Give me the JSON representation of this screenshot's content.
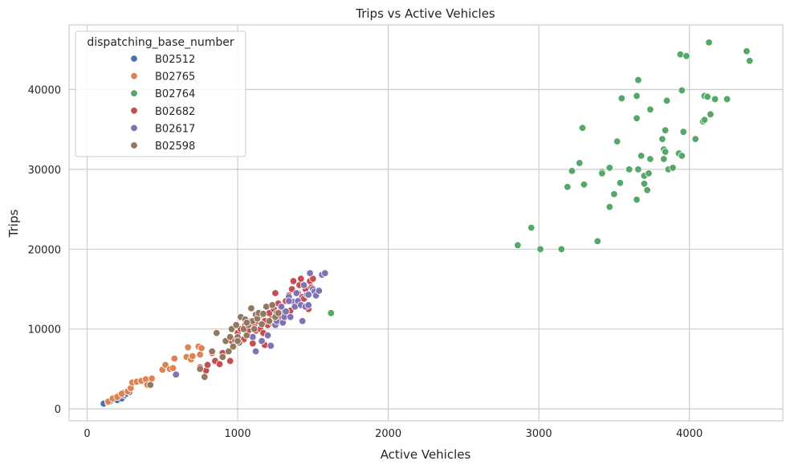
{
  "chart_data": {
    "type": "scatter",
    "title": "Trips vs Active Vehicles",
    "xlabel": "Active Vehicles",
    "ylabel": "Trips",
    "xlim": [
      -120,
      4620
    ],
    "ylim": [
      -1500,
      48100
    ],
    "xticks": [
      0,
      1000,
      2000,
      3000,
      4000
    ],
    "yticks": [
      0,
      10000,
      20000,
      30000,
      40000
    ],
    "xtick_labels": [
      "0",
      "1000",
      "2000",
      "3000",
      "4000"
    ],
    "ytick_labels": [
      "0",
      "10000",
      "20000",
      "30000",
      "40000"
    ],
    "grid": true,
    "legend": {
      "title": "dispatching_base_number",
      "position": "top-left"
    },
    "series": [
      {
        "name": "B02512",
        "color": "#4c72b0",
        "points": [
          [
            110,
            650
          ],
          [
            140,
            800
          ],
          [
            160,
            1000
          ],
          [
            180,
            1200
          ],
          [
            190,
            1450
          ],
          [
            200,
            1100
          ],
          [
            210,
            1600
          ],
          [
            220,
            1800
          ],
          [
            230,
            1300
          ],
          [
            240,
            2000
          ],
          [
            250,
            1700
          ],
          [
            260,
            1900
          ],
          [
            270,
            2300
          ],
          [
            280,
            2100
          ],
          [
            150,
            900
          ],
          [
            200,
            1500
          ],
          [
            230,
            1750
          ]
        ]
      },
      {
        "name": "B02765",
        "color": "#dd8452",
        "points": [
          [
            140,
            900
          ],
          [
            170,
            1300
          ],
          [
            200,
            1500
          ],
          [
            230,
            1900
          ],
          [
            270,
            2200
          ],
          [
            290,
            2600
          ],
          [
            300,
            3300
          ],
          [
            330,
            3400
          ],
          [
            360,
            3500
          ],
          [
            390,
            3700
          ],
          [
            400,
            3000
          ],
          [
            430,
            3800
          ],
          [
            500,
            4900
          ],
          [
            520,
            5500
          ],
          [
            550,
            5000
          ],
          [
            570,
            5100
          ],
          [
            580,
            6300
          ],
          [
            660,
            6500
          ],
          [
            670,
            7700
          ],
          [
            690,
            6200
          ],
          [
            700,
            6600
          ],
          [
            740,
            7800
          ],
          [
            760,
            7600
          ],
          [
            750,
            6800
          ]
        ]
      },
      {
        "name": "B02764",
        "color": "#55a868",
        "points": [
          [
            1620,
            12000
          ],
          [
            2860,
            20500
          ],
          [
            2950,
            22700
          ],
          [
            3010,
            20000
          ],
          [
            3150,
            20000
          ],
          [
            3190,
            27800
          ],
          [
            3220,
            29800
          ],
          [
            3270,
            30800
          ],
          [
            3290,
            35200
          ],
          [
            3300,
            28100
          ],
          [
            3390,
            21000
          ],
          [
            3420,
            29700
          ],
          [
            3420,
            29500
          ],
          [
            3470,
            25300
          ],
          [
            3470,
            30200
          ],
          [
            3500,
            26900
          ],
          [
            3520,
            33500
          ],
          [
            3540,
            28300
          ],
          [
            3550,
            38900
          ],
          [
            3600,
            30000
          ],
          [
            3650,
            26200
          ],
          [
            3650,
            36400
          ],
          [
            3650,
            39200
          ],
          [
            3660,
            30000
          ],
          [
            3660,
            41200
          ],
          [
            3680,
            31700
          ],
          [
            3700,
            28200
          ],
          [
            3700,
            29200
          ],
          [
            3720,
            27400
          ],
          [
            3730,
            29500
          ],
          [
            3740,
            31300
          ],
          [
            3740,
            37500
          ],
          [
            3820,
            33800
          ],
          [
            3830,
            31300
          ],
          [
            3830,
            32500
          ],
          [
            3840,
            32200
          ],
          [
            3840,
            34900
          ],
          [
            3850,
            38600
          ],
          [
            3860,
            30000
          ],
          [
            3890,
            30200
          ],
          [
            3930,
            32000
          ],
          [
            3940,
            44400
          ],
          [
            3950,
            39900
          ],
          [
            3950,
            31700
          ],
          [
            3960,
            34700
          ],
          [
            3980,
            44200
          ],
          [
            4040,
            33800
          ],
          [
            4090,
            36000
          ],
          [
            4100,
            39200
          ],
          [
            4100,
            36200
          ],
          [
            4120,
            39100
          ],
          [
            4130,
            45900
          ],
          [
            4140,
            36900
          ],
          [
            4170,
            38800
          ],
          [
            4250,
            38800
          ],
          [
            4380,
            44800
          ],
          [
            4400,
            43600
          ]
        ]
      },
      {
        "name": "B02682",
        "color": "#c44e52",
        "points": [
          [
            750,
            5200
          ],
          [
            790,
            4800
          ],
          [
            800,
            5500
          ],
          [
            830,
            7000
          ],
          [
            850,
            6000
          ],
          [
            880,
            5600
          ],
          [
            900,
            7000
          ],
          [
            950,
            6000
          ],
          [
            960,
            8500
          ],
          [
            980,
            8700
          ],
          [
            1000,
            9500
          ],
          [
            1020,
            10000
          ],
          [
            1040,
            8700
          ],
          [
            1050,
            10500
          ],
          [
            1070,
            9800
          ],
          [
            1090,
            11000
          ],
          [
            1100,
            8200
          ],
          [
            1110,
            10500
          ],
          [
            1120,
            9800
          ],
          [
            1130,
            11000
          ],
          [
            1150,
            10000
          ],
          [
            1160,
            11800
          ],
          [
            1170,
            9500
          ],
          [
            1180,
            8000
          ],
          [
            1200,
            10500
          ],
          [
            1210,
            12000
          ],
          [
            1220,
            11200
          ],
          [
            1230,
            10800
          ],
          [
            1240,
            12500
          ],
          [
            1250,
            14500
          ],
          [
            1260,
            12000
          ],
          [
            1270,
            13200
          ],
          [
            1280,
            11500
          ],
          [
            1290,
            12500
          ],
          [
            1300,
            12200
          ],
          [
            1320,
            13500
          ],
          [
            1340,
            14200
          ],
          [
            1350,
            12300
          ],
          [
            1360,
            15000
          ],
          [
            1370,
            16000
          ],
          [
            1380,
            13300
          ],
          [
            1400,
            14500
          ],
          [
            1410,
            15500
          ],
          [
            1420,
            16300
          ],
          [
            1430,
            14000
          ],
          [
            1440,
            13800
          ],
          [
            1450,
            15000
          ],
          [
            1470,
            12500
          ],
          [
            1480,
            16000
          ],
          [
            1490,
            15200
          ],
          [
            1500,
            16300
          ],
          [
            1180,
            11000
          ],
          [
            1260,
            10700
          ]
        ]
      },
      {
        "name": "B02617",
        "color": "#8172b3",
        "points": [
          [
            590,
            4300
          ],
          [
            1100,
            9000
          ],
          [
            1120,
            7200
          ],
          [
            1160,
            8500
          ],
          [
            1200,
            9200
          ],
          [
            1220,
            7900
          ],
          [
            1250,
            10500
          ],
          [
            1260,
            11000
          ],
          [
            1290,
            12800
          ],
          [
            1300,
            10800
          ],
          [
            1310,
            11500
          ],
          [
            1320,
            12200
          ],
          [
            1340,
            14000
          ],
          [
            1350,
            11500
          ],
          [
            1370,
            13400
          ],
          [
            1380,
            12800
          ],
          [
            1390,
            14500
          ],
          [
            1400,
            13500
          ],
          [
            1420,
            13000
          ],
          [
            1430,
            11000
          ],
          [
            1440,
            15500
          ],
          [
            1450,
            12800
          ],
          [
            1460,
            14300
          ],
          [
            1470,
            13000
          ],
          [
            1480,
            17000
          ],
          [
            1500,
            15000
          ],
          [
            1510,
            14700
          ],
          [
            1520,
            14200
          ],
          [
            1540,
            14800
          ],
          [
            1560,
            16800
          ],
          [
            1580,
            17000
          ],
          [
            1340,
            13500
          ],
          [
            1470,
            14300
          ]
        ]
      },
      {
        "name": "B02598",
        "color": "#937860",
        "points": [
          [
            420,
            3000
          ],
          [
            750,
            5000
          ],
          [
            780,
            4000
          ],
          [
            830,
            7200
          ],
          [
            860,
            9500
          ],
          [
            900,
            6500
          ],
          [
            920,
            8500
          ],
          [
            940,
            7200
          ],
          [
            950,
            9000
          ],
          [
            960,
            10000
          ],
          [
            970,
            7800
          ],
          [
            990,
            10500
          ],
          [
            1000,
            9000
          ],
          [
            1010,
            8300
          ],
          [
            1020,
            11500
          ],
          [
            1040,
            10000
          ],
          [
            1050,
            11200
          ],
          [
            1060,
            9200
          ],
          [
            1070,
            10500
          ],
          [
            1090,
            12600
          ],
          [
            1100,
            11000
          ],
          [
            1110,
            10000
          ],
          [
            1120,
            11800
          ],
          [
            1130,
            11300
          ],
          [
            1140,
            12000
          ],
          [
            1160,
            10600
          ],
          [
            1170,
            11900
          ],
          [
            1190,
            12800
          ],
          [
            1210,
            11000
          ],
          [
            1230,
            13000
          ],
          [
            1250,
            11500
          ],
          [
            1270,
            12000
          ],
          [
            1000,
            8500
          ],
          [
            1060,
            10800
          ]
        ]
      }
    ]
  }
}
